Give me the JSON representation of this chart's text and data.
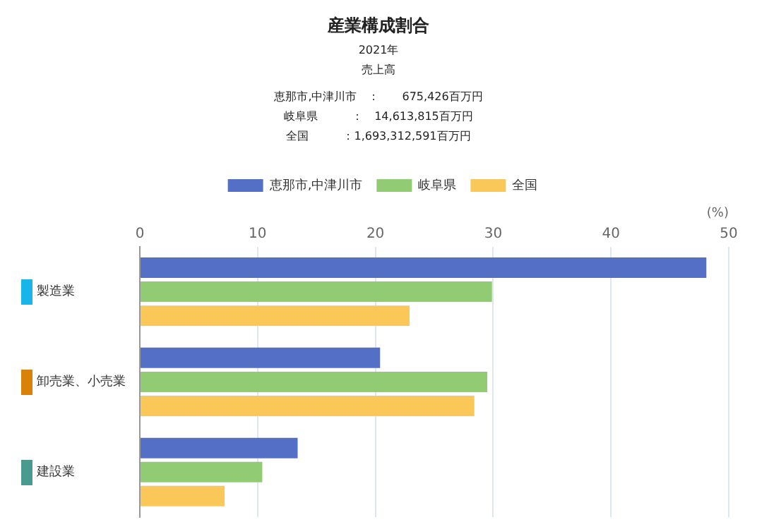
{
  "chart_data": {
    "type": "bar",
    "orientation": "horizontal",
    "title": "産業構成割合",
    "subtitle": "2021年",
    "annotations": [
      "売上高",
      "恵那市,中津川市　：　　675,426百万円",
      "岐阜県　　　：　14,613,815百万円",
      "全国　　　：1,693,312,591百万円"
    ],
    "xlabel": "(%)",
    "categories": [
      "製造業",
      "卸売業、小売業",
      "建設業"
    ],
    "series": [
      {
        "name": "恵那市,中津川市",
        "color": "#5470c6",
        "values": [
          48.1,
          20.4,
          13.4
        ]
      },
      {
        "name": "岐阜県",
        "color": "#91cc75",
        "values": [
          29.9,
          29.5,
          10.4
        ]
      },
      {
        "name": "全国",
        "color": "#fac858",
        "values": [
          22.9,
          28.4,
          7.2
        ]
      }
    ],
    "xlim": [
      0,
      50
    ],
    "xticks": [
      0,
      10,
      20,
      30,
      40,
      50
    ],
    "grid": "x",
    "legend": "top"
  }
}
